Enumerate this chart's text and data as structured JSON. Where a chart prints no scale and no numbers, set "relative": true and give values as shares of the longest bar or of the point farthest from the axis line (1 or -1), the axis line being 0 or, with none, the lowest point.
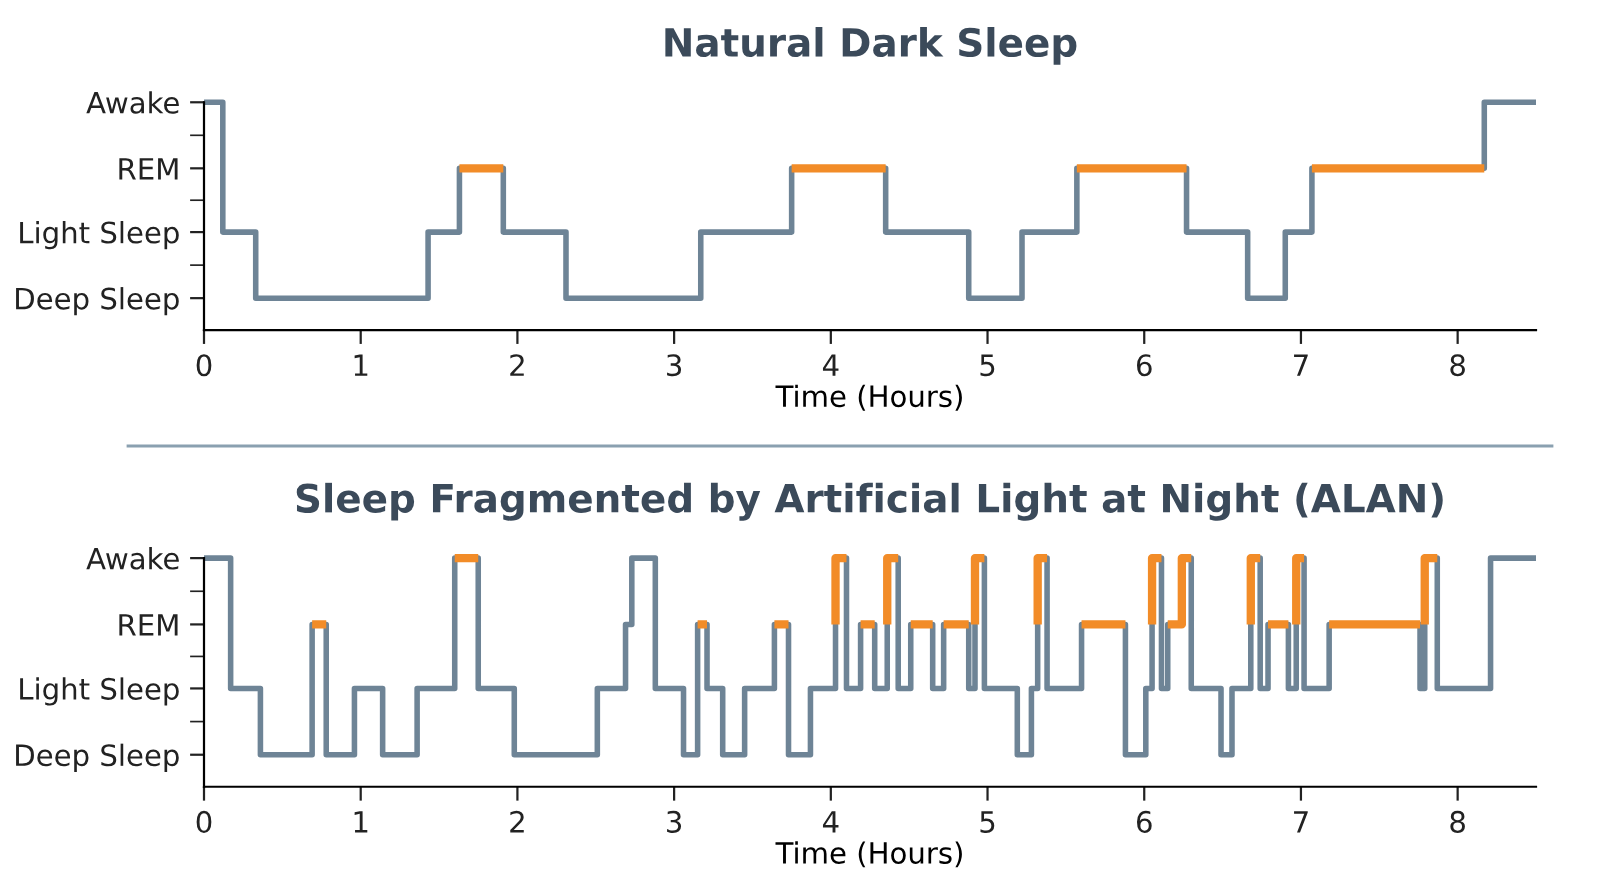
{
  "chart_data": [
    {
      "type": "step",
      "title": "Natural Dark Sleep",
      "xlabel": "Time (Hours)",
      "xlim": [
        0,
        8.5
      ],
      "xticks": [
        0,
        1,
        2,
        3,
        4,
        5,
        6,
        7,
        8
      ],
      "relative": true,
      "annotations": [
        "Awake",
        "REM",
        "Light Sleep",
        "Deep Sleep"
      ],
      "grid": false,
      "marker": "none",
      "line_style": "solid",
      "series": [
        {
          "color": "#6e8496",
          "x": [
            0,
            0.12,
            0.33,
            1.43,
            1.63,
            1.91,
            2.31,
            3.17,
            3.75,
            4.35,
            4.88,
            5.22,
            5.57,
            6.27,
            6.66,
            6.9,
            7.07,
            8.17,
            8.5
          ],
          "values": [
            1,
            0.43,
            0.14,
            0.43,
            0.71,
            0.43,
            0.14,
            0.43,
            0.71,
            0.43,
            0.14,
            0.43,
            0.71,
            0.43,
            0.14,
            0.43,
            0.71,
            1,
            1
          ]
        },
        {
          "color": "#f28c28",
          "x": [
            1.63,
            1.91,
            3.75,
            4.35,
            5.57,
            6.27,
            7.07,
            8.17
          ],
          "values": [
            0.71,
            null,
            0.71,
            null,
            0.71,
            null,
            0.71,
            0.71
          ]
        }
      ]
    },
    {
      "type": "step",
      "title": "Sleep Fragmented by Artificial Light at Night (ALAN)",
      "xlabel": "Time (Hours)",
      "xlim": [
        0,
        8.5
      ],
      "xticks": [
        0,
        1,
        2,
        3,
        4,
        5,
        6,
        7,
        8
      ],
      "relative": true,
      "annotations": [
        "Awake",
        "REM",
        "Light Sleep",
        "Deep Sleep"
      ],
      "grid": false,
      "marker": "none",
      "line_style": "solid",
      "series": [
        {
          "color": "#6e8496",
          "x": [
            0,
            0.17,
            0.36,
            0.69,
            0.78,
            0.96,
            1.14,
            1.36,
            1.6,
            1.75,
            1.98,
            2.51,
            2.69,
            2.73,
            2.88,
            3.06,
            3.15,
            3.21,
            3.31,
            3.45,
            3.64,
            3.73,
            3.87,
            4.03,
            4.1,
            4.19,
            4.28,
            4.36,
            4.43,
            4.51,
            4.65,
            4.72,
            4.88,
            4.92,
            4.98,
            5.19,
            5.28,
            5.32,
            5.38,
            5.6,
            5.88,
            6.01,
            6.05,
            6.11,
            6.15,
            6.24,
            6.3,
            6.49,
            6.56,
            6.68,
            6.74,
            6.79,
            6.92,
            6.97,
            7.02,
            7.18,
            7.76,
            7.79,
            7.87,
            8.21,
            8.5
          ],
          "values": [
            1,
            0.43,
            0.14,
            0.71,
            0.14,
            0.43,
            0.14,
            0.43,
            1,
            0.43,
            0.14,
            0.43,
            0.71,
            1,
            0.43,
            0.14,
            0.71,
            0.43,
            0.14,
            0.43,
            0.71,
            0.14,
            0.43,
            1,
            0.43,
            0.71,
            0.43,
            1,
            0.43,
            0.71,
            0.43,
            0.71,
            0.43,
            1,
            0.43,
            0.14,
            0.43,
            1,
            0.43,
            0.71,
            0.14,
            0.43,
            1,
            0.43,
            0.71,
            1,
            0.43,
            0.14,
            0.43,
            1,
            0.43,
            0.71,
            0.43,
            1,
            0.43,
            0.71,
            0.43,
            1,
            0.43,
            1,
            1
          ]
        },
        {
          "color": "#f28c28",
          "x": [
            0.69,
            0.78,
            1.6,
            1.75,
            3.15,
            3.21,
            3.64,
            3.73,
            4.03,
            4.03,
            4.1,
            4.19,
            4.28,
            4.36,
            4.36,
            4.43,
            4.51,
            4.65,
            4.72,
            4.88,
            4.92,
            4.92,
            4.98,
            5.32,
            5.32,
            5.38,
            5.6,
            5.88,
            6.05,
            6.05,
            6.11,
            6.15,
            6.24,
            6.3,
            6.68,
            6.68,
            6.74,
            6.79,
            6.92,
            6.97,
            6.97,
            7.02,
            7.18,
            7.76,
            7.79,
            7.79,
            7.87
          ],
          "values": [
            0.71,
            null,
            1,
            null,
            0.71,
            null,
            0.71,
            null,
            0.71,
            1,
            null,
            0.71,
            null,
            0.71,
            1,
            null,
            0.71,
            null,
            0.71,
            null,
            0.71,
            1,
            null,
            0.71,
            1,
            null,
            0.71,
            null,
            0.71,
            1,
            null,
            0.71,
            1,
            null,
            0.71,
            1,
            null,
            0.71,
            null,
            0.71,
            1,
            null,
            0.71,
            null,
            0.71,
            1,
            1
          ]
        }
      ]
    }
  ]
}
